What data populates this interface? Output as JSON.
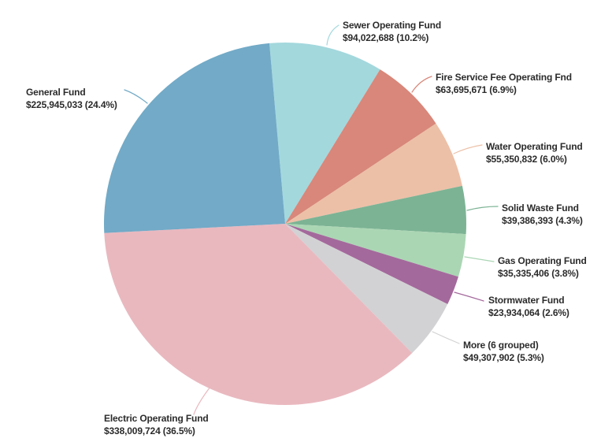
{
  "page": {
    "background_color": "#ffffff",
    "text_color": "#2b2b2b"
  },
  "chart_data": {
    "type": "pie",
    "title": "",
    "legend_position": "none",
    "labels_style": "outside-with-leader-lines",
    "start_angle_deg": -5,
    "direction": "clockwise",
    "slices": [
      {
        "name": "Sewer Operating Fund",
        "value": 94022688,
        "amount_line": "$94,022,688 (10.2%)",
        "pct": 10.2,
        "color": "#a3d8dd"
      },
      {
        "name": "Fire Service Fee Operating Fnd",
        "value": 63695671,
        "amount_line": "$63,695,671 (6.9%)",
        "pct": 6.9,
        "color": "#d8877a"
      },
      {
        "name": "Water Operating Fund",
        "value": 55350832,
        "amount_line": "$55,350,832 (6.0%)",
        "pct": 6.0,
        "color": "#ecc0a7"
      },
      {
        "name": "Solid Waste Fund",
        "value": 39386393,
        "amount_line": "$39,386,393 (4.3%)",
        "pct": 4.3,
        "color": "#7cb394"
      },
      {
        "name": "Gas Operating Fund",
        "value": 35335406,
        "amount_line": "$35,335,406 (3.8%)",
        "pct": 3.8,
        "color": "#abd6b4"
      },
      {
        "name": "Stormwater Fund",
        "value": 23934064,
        "amount_line": "$23,934,064 (2.6%)",
        "pct": 2.6,
        "color": "#a4699c"
      },
      {
        "name": "More (6 grouped)",
        "value": 49307902,
        "amount_line": "$49,307,902 (5.3%)",
        "pct": 5.3,
        "color": "#d2d2d4"
      },
      {
        "name": "Electric Operating Fund",
        "value": 338009724,
        "amount_line": "$338,009,724 (36.5%)",
        "pct": 36.5,
        "color": "#e9b8bf"
      },
      {
        "name": "General Fund",
        "value": 225945033,
        "amount_line": "$225,945,033 (24.4%)",
        "pct": 24.4,
        "color": "#72aac7"
      }
    ]
  }
}
